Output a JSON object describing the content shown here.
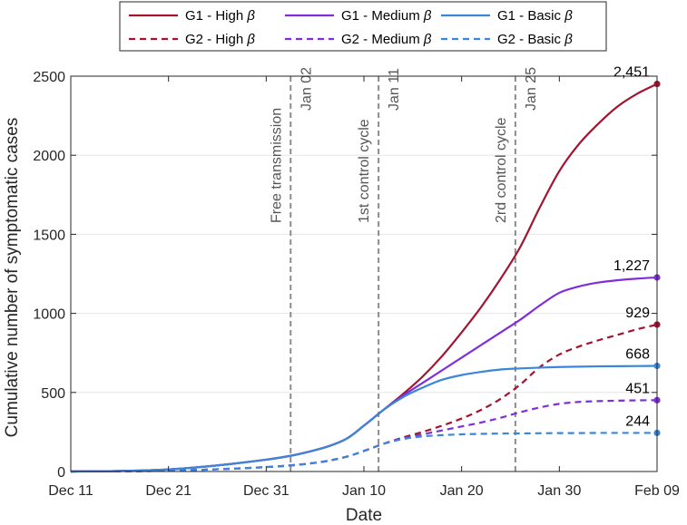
{
  "chart_data": {
    "type": "line",
    "xlabel": "Date",
    "ylabel": "Cumulative number of symptomatic cases",
    "xlim": [
      0,
      60
    ],
    "ylim": [
      0,
      2500
    ],
    "x_ticks": [
      {
        "day": 0,
        "label": "Dec 11"
      },
      {
        "day": 10,
        "label": "Dec 21"
      },
      {
        "day": 20,
        "label": "Dec 31"
      },
      {
        "day": 30,
        "label": "Jan 10"
      },
      {
        "day": 40,
        "label": "Jan 20"
      },
      {
        "day": 50,
        "label": "Jan 30"
      },
      {
        "day": 60,
        "label": "Feb 09"
      }
    ],
    "y_ticks": [
      0,
      500,
      1000,
      1500,
      2000,
      2500
    ],
    "grid": "horizontal",
    "colors": {
      "high": "#a2142f",
      "medium": "#7e2fd9",
      "basic": "#3b86d8"
    },
    "series": [
      {
        "name": "G1 - High β",
        "group": "G1",
        "level": "high",
        "style": "solid",
        "x": [
          0,
          10,
          20,
          25,
          28,
          30,
          32,
          34,
          36,
          38,
          40,
          42,
          44,
          46,
          48,
          50,
          52,
          54,
          56,
          58,
          60
        ],
        "y": [
          0,
          13,
          75,
          135,
          200,
          290,
          390,
          490,
          600,
          730,
          880,
          1040,
          1220,
          1420,
          1670,
          1900,
          2070,
          2200,
          2310,
          2390,
          2451
        ],
        "end_label": "2,451"
      },
      {
        "name": "G1 - Medium β",
        "group": "G1",
        "level": "medium",
        "style": "solid",
        "x": [
          0,
          10,
          20,
          25,
          28,
          30,
          32,
          34,
          36,
          38,
          40,
          42,
          44,
          46,
          48,
          50,
          52,
          54,
          56,
          58,
          60
        ],
        "y": [
          0,
          13,
          75,
          135,
          200,
          290,
          390,
          480,
          560,
          640,
          720,
          800,
          880,
          960,
          1050,
          1130,
          1170,
          1195,
          1210,
          1220,
          1227
        ],
        "end_label": "1,227"
      },
      {
        "name": "G1 - Basic β",
        "group": "G1",
        "level": "basic",
        "style": "solid",
        "x": [
          0,
          10,
          20,
          25,
          28,
          30,
          32,
          34,
          36,
          38,
          40,
          42,
          44,
          46,
          48,
          50,
          52,
          54,
          56,
          58,
          60
        ],
        "y": [
          0,
          13,
          75,
          135,
          200,
          290,
          390,
          470,
          530,
          580,
          610,
          630,
          645,
          652,
          657,
          661,
          663,
          665,
          666,
          667,
          668
        ],
        "end_label": "668"
      },
      {
        "name": "G2 - High β",
        "group": "G2",
        "level": "high",
        "style": "dashed",
        "x": [
          0,
          10,
          20,
          25,
          28,
          30,
          32,
          34,
          36,
          38,
          40,
          42,
          44,
          46,
          48,
          50,
          52,
          54,
          56,
          58,
          60
        ],
        "y": [
          0,
          5,
          28,
          55,
          90,
          130,
          175,
          215,
          250,
          290,
          335,
          390,
          460,
          550,
          660,
          740,
          790,
          830,
          865,
          900,
          929
        ],
        "end_label": "929"
      },
      {
        "name": "G2 - Medium β",
        "group": "G2",
        "level": "medium",
        "style": "dashed",
        "x": [
          0,
          10,
          20,
          25,
          28,
          30,
          32,
          34,
          36,
          38,
          40,
          42,
          44,
          46,
          48,
          50,
          52,
          54,
          56,
          58,
          60
        ],
        "y": [
          0,
          5,
          28,
          55,
          90,
          130,
          175,
          210,
          235,
          260,
          285,
          310,
          340,
          375,
          405,
          428,
          440,
          445,
          448,
          450,
          451
        ],
        "end_label": "451"
      },
      {
        "name": "G2 - Basic β",
        "group": "G2",
        "level": "basic",
        "style": "dashed",
        "x": [
          0,
          10,
          20,
          25,
          28,
          30,
          32,
          34,
          36,
          38,
          40,
          42,
          44,
          46,
          48,
          50,
          52,
          54,
          56,
          58,
          60
        ],
        "y": [
          0,
          5,
          28,
          55,
          90,
          130,
          175,
          205,
          222,
          230,
          235,
          238,
          240,
          241,
          242,
          243,
          243,
          244,
          244,
          244,
          244
        ],
        "end_label": "244"
      }
    ],
    "vertical_markers": [
      {
        "day": 22.5,
        "label": "Jan 02",
        "phase": "Free transmission"
      },
      {
        "day": 31.5,
        "label": "Jan 11",
        "phase": "1st control cycle"
      },
      {
        "day": 45.5,
        "label": "Jan 25",
        "phase": "2rd control cycle"
      }
    ],
    "legend_position": "top-center",
    "legend_beta_symbol": "β"
  }
}
